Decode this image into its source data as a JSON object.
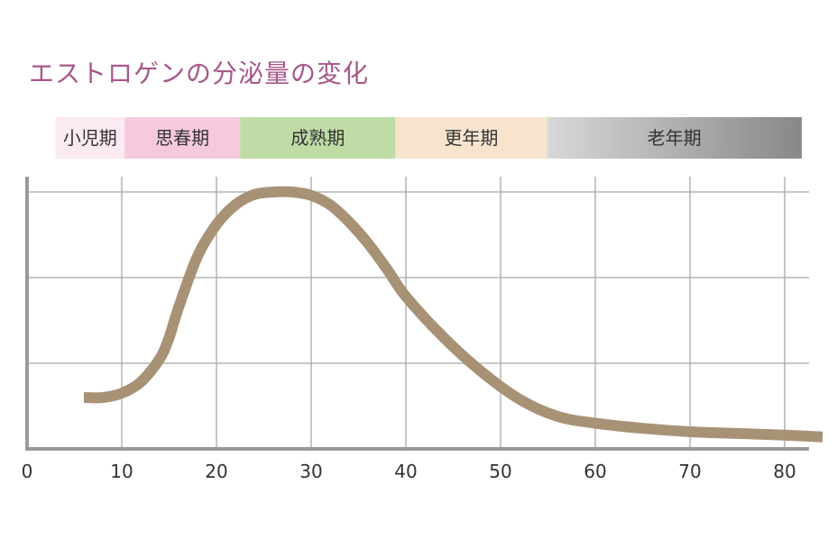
{
  "chart_data": {
    "type": "line",
    "title": "エストロゲンの分泌量の変化",
    "xlabel": "",
    "ylabel": "",
    "x_ticks": [
      0,
      10,
      20,
      30,
      40,
      50,
      60,
      70,
      80
    ],
    "xlim": [
      0,
      82
    ],
    "ylim": [
      0,
      3.05
    ],
    "y_gridlines": [
      1,
      2,
      3
    ],
    "grid": true,
    "life_stages": [
      {
        "label": "小児期",
        "start": 3,
        "end": 10.3,
        "color": "#fbeaf1"
      },
      {
        "label": "思春期",
        "start": 10.3,
        "end": 22.5,
        "color": "#f7c9df"
      },
      {
        "label": "成熟期",
        "start": 22.5,
        "end": 38.9,
        "color": "#bfdca6"
      },
      {
        "label": "更年期",
        "start": 38.9,
        "end": 54.9,
        "color": "#f8e4cd"
      },
      {
        "label": "老年期",
        "start": 54.9,
        "end": 81.8,
        "color_from": "#d8d8d8",
        "color_to": "#888888"
      }
    ],
    "series": [
      {
        "color": "#a89276",
        "x": [
          6,
          8,
          10,
          12,
          14,
          15,
          16,
          18,
          20,
          22,
          24,
          26,
          28,
          30,
          32,
          34,
          36,
          38,
          40,
          44,
          48,
          52,
          56,
          60,
          65,
          70,
          75,
          80,
          84
        ],
        "y": [
          0.6,
          0.6,
          0.65,
          0.78,
          1.05,
          1.3,
          1.65,
          2.25,
          2.62,
          2.85,
          2.97,
          3.0,
          3.0,
          2.96,
          2.85,
          2.65,
          2.4,
          2.1,
          1.78,
          1.3,
          0.9,
          0.58,
          0.38,
          0.3,
          0.24,
          0.2,
          0.18,
          0.16,
          0.14
        ]
      }
    ]
  }
}
